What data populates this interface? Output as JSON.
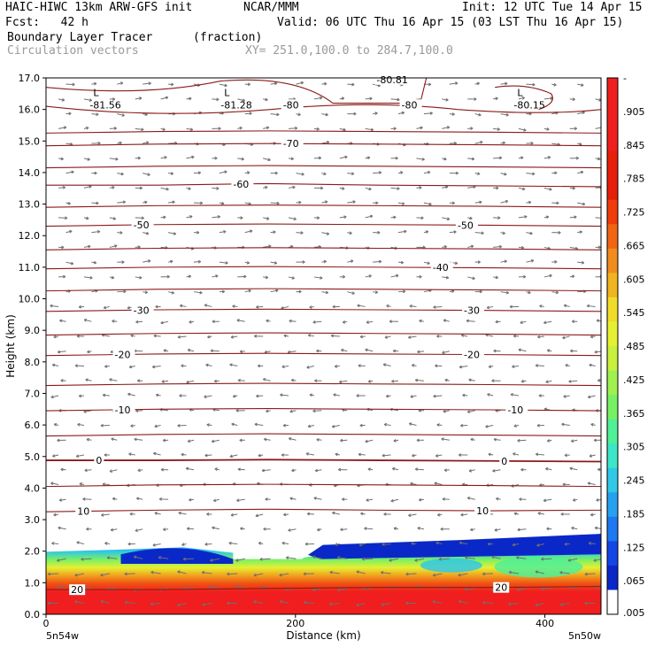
{
  "header": {
    "model": "HAIC-HIWC 13km ARW-GFS init",
    "org": "NCAR/MMM",
    "init": "Init: 12 UTC Tue 14 Apr 15",
    "fcst": "Fcst:   42 h",
    "valid": "Valid: 06 UTC Thu 16 Apr 15 (03 LST Thu 16 Apr 15)",
    "field": "Boundary Layer Tracer",
    "units": "(fraction)",
    "vectors": "Circulation vectors",
    "xy": "XY= 251.0,100.0 to 284.7,100.0"
  },
  "colors": {
    "contour": "#8b1a1a",
    "vector": "#707070",
    "colorbar": [
      "#ffffff",
      "#0a28c8",
      "#1446e6",
      "#1e78f0",
      "#28a0f0",
      "#30c8e6",
      "#3ce6c8",
      "#50f096",
      "#78f064",
      "#a0f050",
      "#c8f03c",
      "#e6f032",
      "#f0dc28",
      "#f0b41e",
      "#f08c1e",
      "#f06414",
      "#f03c0a",
      "#e61e0a",
      "#e61e0a",
      "#f01e1e",
      "#f01e1e",
      "#f01e1e"
    ]
  },
  "chart_data": {
    "type": "heatmap",
    "title": "Boundary Layer Tracer",
    "xlabel": "Distance (km)",
    "ylabel": "Height (km)",
    "xlim": [
      0,
      445
    ],
    "ylim": [
      0,
      17
    ],
    "x_ticks": [
      "0",
      "200",
      "400"
    ],
    "x_tick_values": [
      0,
      200,
      400
    ],
    "x_end_labels": [
      "5n54w",
      "5n50w"
    ],
    "y_ticks": [
      "0.0",
      "1.0",
      "2.0",
      "3.0",
      "4.0",
      "5.0",
      "6.0",
      "7.0",
      "8.0",
      "9.0",
      "10.0",
      "11.0",
      "12.0",
      "13.0",
      "14.0",
      "15.0",
      "16.0",
      "17.0"
    ],
    "colorbar_labels": [
      "-",
      ".905",
      ".845",
      ".785",
      ".725",
      ".665",
      ".605",
      ".545",
      ".485",
      ".425",
      ".365",
      ".305",
      ".245",
      ".185",
      ".125",
      ".065",
      ".005"
    ],
    "temperature_contours": [
      {
        "label": "20",
        "height": [
          0.78,
          0.78,
          0.82,
          0.85,
          0.85,
          0.88
        ],
        "label_x": [
          20,
          360
        ]
      },
      {
        "label": "10",
        "height": [
          3.25,
          3.3,
          3.33,
          3.3,
          3.28,
          3.3
        ],
        "label_x": [
          25,
          345
        ]
      },
      {
        "height": [
          4.05,
          4.1,
          4.12,
          4.1,
          4.08,
          4.05
        ]
      },
      {
        "label": "0",
        "height": [
          4.88,
          4.88,
          4.9,
          4.88,
          4.86,
          4.84
        ],
        "label_x": [
          40,
          365
        ]
      },
      {
        "height": [
          5.65,
          5.7,
          5.72,
          5.7,
          5.68,
          5.65
        ]
      },
      {
        "label": "-10",
        "height": [
          6.45,
          6.5,
          6.52,
          6.5,
          6.48,
          6.45
        ],
        "label_x": [
          55,
          370
        ]
      },
      {
        "height": [
          7.25,
          7.3,
          7.32,
          7.3,
          7.28,
          7.25
        ]
      },
      {
        "label": "-20",
        "height": [
          8.2,
          8.25,
          8.27,
          8.25,
          8.23,
          8.2
        ],
        "label_x": [
          55,
          335
        ]
      },
      {
        "height": [
          8.85,
          8.9,
          8.92,
          8.9,
          8.88,
          8.85
        ]
      },
      {
        "label": "-30",
        "height": [
          9.6,
          9.65,
          9.67,
          9.65,
          9.63,
          9.6
        ],
        "label_x": [
          70,
          335
        ]
      },
      {
        "height": [
          10.25,
          10.3,
          10.32,
          10.3,
          10.28,
          10.25
        ]
      },
      {
        "label": "-40",
        "height": [
          10.95,
          11.0,
          11.02,
          11.0,
          10.98,
          10.95
        ],
        "label_x": [
          310
        ]
      },
      {
        "height": [
          11.55,
          11.6,
          11.62,
          11.6,
          11.58,
          11.55
        ]
      },
      {
        "label": "-50",
        "height": [
          12.3,
          12.35,
          12.37,
          12.35,
          12.33,
          12.3
        ],
        "label_x": [
          70,
          330
        ]
      },
      {
        "height": [
          12.9,
          12.95,
          12.97,
          12.95,
          12.93,
          12.9
        ]
      },
      {
        "label": "-60",
        "height": [
          13.6,
          13.6,
          13.65,
          13.6,
          13.58,
          13.55
        ],
        "label_x": [
          150
        ]
      },
      {
        "height": [
          14.15,
          14.2,
          14.22,
          14.2,
          14.18,
          14.15
        ]
      },
      {
        "label": "-70",
        "height": [
          14.85,
          14.9,
          14.92,
          14.9,
          14.88,
          14.85
        ],
        "label_x": [
          190
        ]
      },
      {
        "height": [
          15.25,
          15.3,
          15.32,
          15.3,
          15.28,
          15.25
        ]
      }
    ],
    "minima": [
      {
        "label": "-81.56",
        "x": 35,
        "height": 16.15
      },
      {
        "label": "-81.28",
        "x": 140,
        "height": 16.15
      },
      {
        "label": "-80.15",
        "x": 375,
        "height": 16.15
      }
    ],
    "contour_labels_top": [
      {
        "label": "-80",
        "x": 190,
        "height": 16.15
      },
      {
        "label": "-80",
        "x": 285,
        "height": 16.15
      },
      {
        "label": "-80.81",
        "x": 265,
        "height": 16.95
      }
    ],
    "tracer_layer": {
      "top_km": [
        1.98,
        2.05,
        2.12,
        1.95,
        1.75,
        2.1,
        2.3,
        2.4,
        2.55
      ],
      "x_km": [
        0,
        60,
        110,
        150,
        200,
        250,
        320,
        400,
        445
      ],
      "description_levels": [
        ".005",
        ".065",
        ".125",
        ".185",
        ".245",
        ".305",
        ".365",
        ".425",
        ".485",
        ".545",
        ".605",
        ".665",
        ".725",
        ".785",
        ".845",
        ".905"
      ]
    }
  }
}
